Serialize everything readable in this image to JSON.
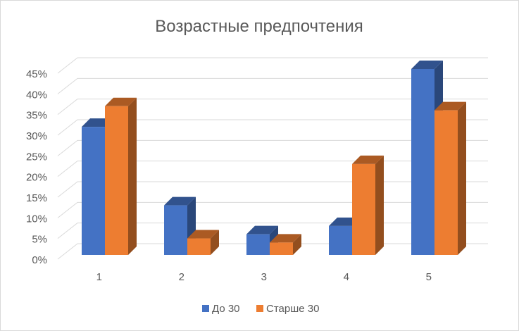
{
  "chart_data": {
    "type": "bar",
    "title": "Возрастные предпочтения",
    "categories": [
      "1",
      "2",
      "3",
      "4",
      "5"
    ],
    "series": [
      {
        "name": "До 30",
        "values": [
          31,
          12,
          5,
          7,
          45
        ],
        "color": "#4472C4"
      },
      {
        "name": "Старше 30",
        "values": [
          36,
          4,
          3,
          22,
          35
        ],
        "color": "#ED7D31"
      }
    ],
    "yticks": [
      "0%",
      "5%",
      "10%",
      "15%",
      "20%",
      "25%",
      "30%",
      "35%",
      "40%",
      "45%"
    ],
    "ylim": [
      0,
      45
    ],
    "grid": true,
    "legend_position": "bottom",
    "style": "3d-column"
  }
}
